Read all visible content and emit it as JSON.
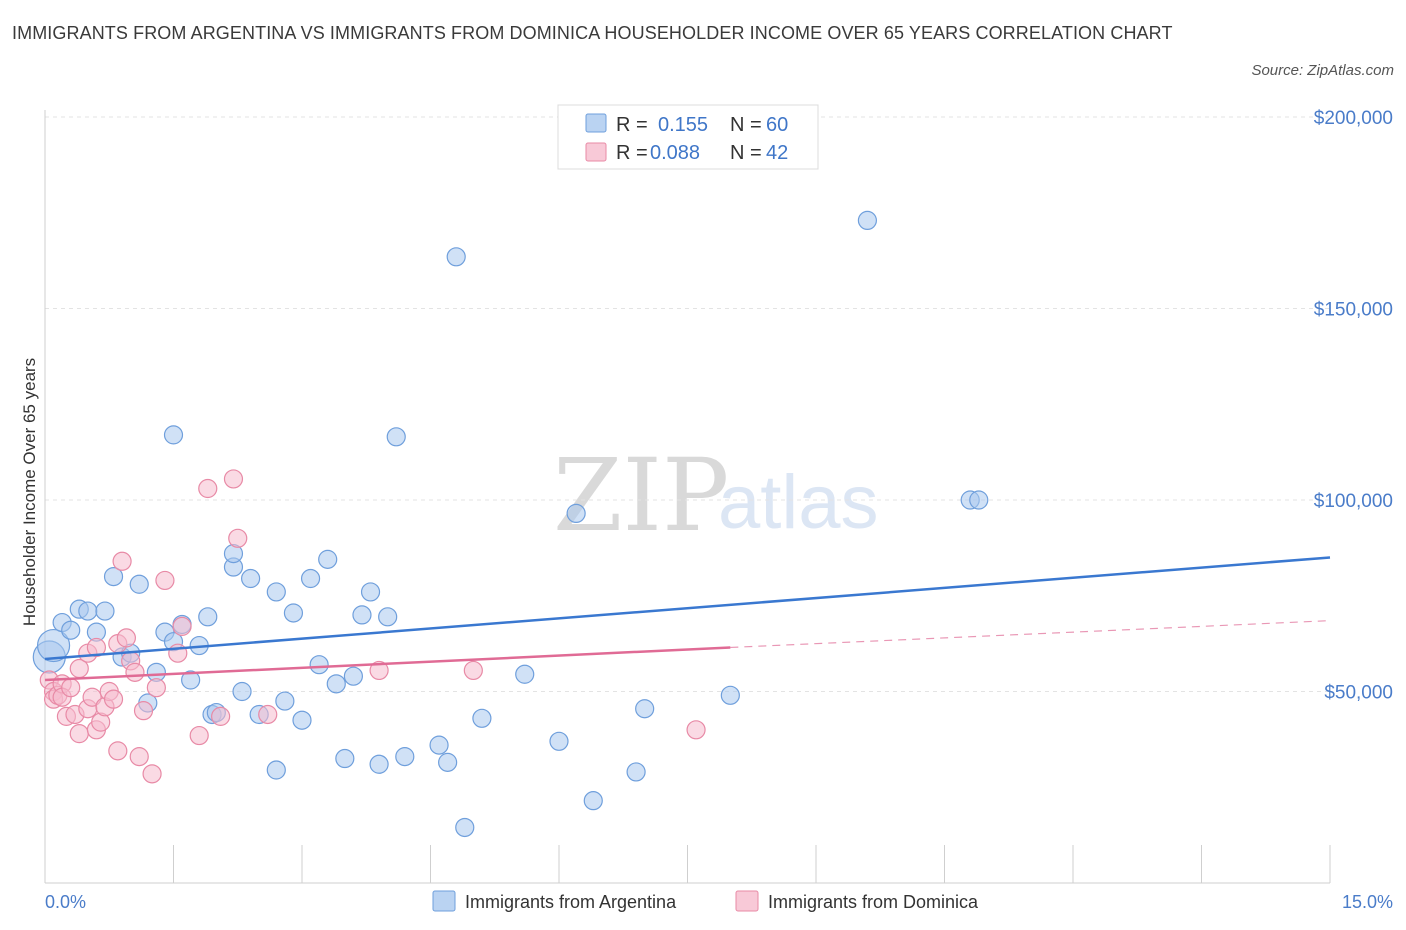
{
  "title": "IMMIGRANTS FROM ARGENTINA VS IMMIGRANTS FROM DOMINICA HOUSEHOLDER INCOME OVER 65 YEARS CORRELATION CHART",
  "source": "Source: ZipAtlas.com",
  "watermark": {
    "zip": "ZIP",
    "atlas": "atlas"
  },
  "legend": {
    "r_label": "R =",
    "n_label": "N =",
    "rows": [
      {
        "r": "0.155",
        "n": "60",
        "color": "#a9c8ef"
      },
      {
        "r": "0.088",
        "n": "42",
        "color": "#f6bccd"
      }
    ]
  },
  "chart_data": {
    "type": "scatter",
    "xlabel": "",
    "ylabel": "Householder Income Over 65 years",
    "xlim": [
      0,
      15
    ],
    "ylim": [
      0,
      200000
    ],
    "x_tick_labels": [
      "0.0%",
      "15.0%"
    ],
    "y_tick_labels": [
      "$50,000",
      "$100,000",
      "$150,000",
      "$200,000"
    ],
    "y_ticks": [
      50000,
      100000,
      150000,
      200000
    ],
    "grid": true,
    "series": [
      {
        "name": "Immigrants from Argentina",
        "color": "#a9c8ef",
        "stroke": "#6f9fdc",
        "trend_color": "#3a78d0",
        "trend": {
          "x": [
            0,
            15
          ],
          "y": [
            58500,
            85000
          ]
        },
        "points": [
          [
            0.05,
            59000
          ],
          [
            0.1,
            62000
          ],
          [
            0.2,
            68000
          ],
          [
            0.3,
            66000
          ],
          [
            0.4,
            71500
          ],
          [
            0.5,
            71000
          ],
          [
            0.6,
            65500
          ],
          [
            0.7,
            71000
          ],
          [
            0.8,
            80000
          ],
          [
            0.9,
            59000
          ],
          [
            1.0,
            60000
          ],
          [
            1.1,
            78000
          ],
          [
            1.2,
            47000
          ],
          [
            1.3,
            55000
          ],
          [
            1.4,
            65500
          ],
          [
            1.5,
            63000
          ],
          [
            1.5,
            117000
          ],
          [
            1.6,
            67500
          ],
          [
            1.7,
            53000
          ],
          [
            1.8,
            62000
          ],
          [
            1.9,
            69500
          ],
          [
            1.95,
            44000
          ],
          [
            2.0,
            44500
          ],
          [
            2.2,
            82500
          ],
          [
            2.2,
            86000
          ],
          [
            2.3,
            50000
          ],
          [
            2.4,
            79500
          ],
          [
            2.5,
            44000
          ],
          [
            2.7,
            76000
          ],
          [
            2.7,
            29500
          ],
          [
            2.8,
            47500
          ],
          [
            2.9,
            70500
          ],
          [
            3.0,
            42500
          ],
          [
            3.1,
            79500
          ],
          [
            3.2,
            57000
          ],
          [
            3.3,
            84500
          ],
          [
            3.4,
            52000
          ],
          [
            3.5,
            32500
          ],
          [
            3.6,
            54000
          ],
          [
            3.7,
            70000
          ],
          [
            3.8,
            76000
          ],
          [
            3.9,
            31000
          ],
          [
            4.0,
            69500
          ],
          [
            4.1,
            116500
          ],
          [
            4.2,
            33000
          ],
          [
            4.6,
            36000
          ],
          [
            4.7,
            31500
          ],
          [
            4.8,
            163500
          ],
          [
            4.9,
            14500
          ],
          [
            5.1,
            43000
          ],
          [
            5.6,
            54500
          ],
          [
            6.0,
            37000
          ],
          [
            6.2,
            96500
          ],
          [
            6.4,
            21500
          ],
          [
            6.9,
            29000
          ],
          [
            7.0,
            45500
          ],
          [
            8.0,
            49000
          ],
          [
            9.6,
            173000
          ],
          [
            10.8,
            100000
          ],
          [
            10.9,
            100000
          ]
        ]
      },
      {
        "name": "Immigrants from Dominica",
        "color": "#f6bccd",
        "stroke": "#e88aa6",
        "trend_color": "#e06b95",
        "trend": {
          "x": [
            0,
            8
          ],
          "y": [
            53000,
            61500
          ]
        },
        "trend_extension": {
          "x": [
            8,
            15
          ],
          "y": [
            61500,
            68500
          ]
        },
        "points": [
          [
            0.05,
            53000
          ],
          [
            0.1,
            50000
          ],
          [
            0.1,
            48000
          ],
          [
            0.15,
            49000
          ],
          [
            0.2,
            52000
          ],
          [
            0.2,
            48500
          ],
          [
            0.25,
            43500
          ],
          [
            0.3,
            51000
          ],
          [
            0.35,
            44000
          ],
          [
            0.4,
            56000
          ],
          [
            0.4,
            39000
          ],
          [
            0.5,
            60000
          ],
          [
            0.5,
            45500
          ],
          [
            0.55,
            48500
          ],
          [
            0.6,
            61500
          ],
          [
            0.6,
            40000
          ],
          [
            0.65,
            42000
          ],
          [
            0.7,
            46000
          ],
          [
            0.75,
            50000
          ],
          [
            0.8,
            48000
          ],
          [
            0.85,
            62500
          ],
          [
            0.85,
            34500
          ],
          [
            0.9,
            84000
          ],
          [
            0.95,
            64000
          ],
          [
            1.0,
            58000
          ],
          [
            1.05,
            55000
          ],
          [
            1.1,
            33000
          ],
          [
            1.15,
            45000
          ],
          [
            1.25,
            28500
          ],
          [
            1.3,
            51000
          ],
          [
            1.4,
            79000
          ],
          [
            1.55,
            60000
          ],
          [
            1.6,
            67000
          ],
          [
            1.8,
            38500
          ],
          [
            1.9,
            103000
          ],
          [
            2.05,
            43500
          ],
          [
            2.2,
            105500
          ],
          [
            2.25,
            90000
          ],
          [
            2.6,
            44000
          ],
          [
            3.9,
            55500
          ],
          [
            5.0,
            55500
          ],
          [
            7.6,
            40000
          ]
        ]
      }
    ]
  }
}
